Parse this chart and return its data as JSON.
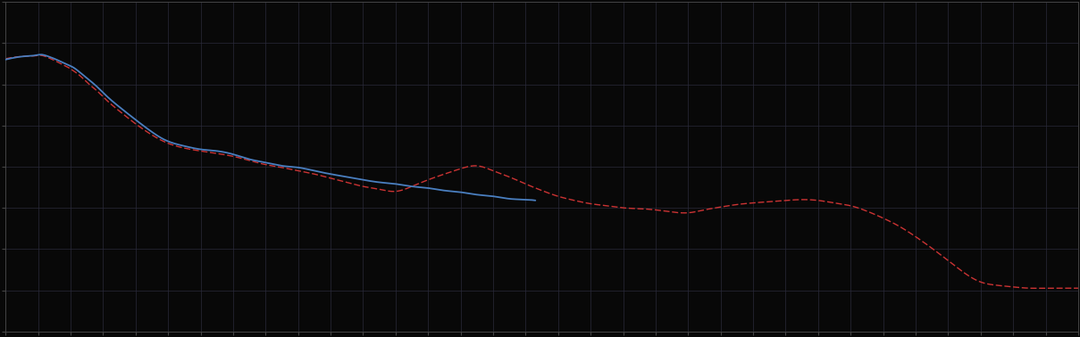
{
  "background_color": "#080808",
  "plot_bg_color": "#080808",
  "grid_color": "#2a2a3a",
  "blue_line_color": "#4a7fc0",
  "red_line_color": "#cc3333",
  "blue_linewidth": 1.3,
  "red_linewidth": 1.0,
  "figsize": [
    12.09,
    3.78
  ],
  "dpi": 100,
  "xlim": [
    0,
    33
  ],
  "ylim": [
    0,
    8
  ],
  "x_grid_major": 1,
  "y_grid_major": 1,
  "blue_x": [
    0,
    0.3,
    0.6,
    0.9,
    1.1,
    1.3,
    1.5,
    1.7,
    1.9,
    2.1,
    2.3,
    2.5,
    2.8,
    3.1,
    3.5,
    3.9,
    4.4,
    4.9,
    5.5,
    6.0,
    6.5,
    7.0,
    7.5,
    8.0,
    8.5,
    9.0,
    9.5,
    10.0,
    10.5,
    11.0,
    11.5,
    12.0,
    12.5,
    13.0,
    13.5,
    14.0,
    14.5,
    15.0,
    15.5,
    16.0,
    16.3
  ],
  "blue_y": [
    6.6,
    6.65,
    6.68,
    6.7,
    6.72,
    6.68,
    6.62,
    6.55,
    6.48,
    6.4,
    6.28,
    6.15,
    5.95,
    5.72,
    5.45,
    5.2,
    4.9,
    4.65,
    4.5,
    4.42,
    4.38,
    4.3,
    4.18,
    4.1,
    4.02,
    3.98,
    3.9,
    3.82,
    3.75,
    3.68,
    3.62,
    3.58,
    3.52,
    3.48,
    3.42,
    3.38,
    3.32,
    3.28,
    3.22,
    3.2,
    3.18
  ],
  "red_x": [
    0,
    0.3,
    0.6,
    0.9,
    1.1,
    1.3,
    1.5,
    1.7,
    1.9,
    2.1,
    2.3,
    2.5,
    2.8,
    3.1,
    3.5,
    3.9,
    4.4,
    4.9,
    5.5,
    6.0,
    6.5,
    7.0,
    7.5,
    8.0,
    8.5,
    9.0,
    9.5,
    10.0,
    10.5,
    11.0,
    11.5,
    12.0,
    12.5,
    13.0,
    13.5,
    14.0,
    14.5,
    15.0,
    15.5,
    16.0,
    16.5,
    17.0,
    17.5,
    18.0,
    18.5,
    19.0,
    19.5,
    20.0,
    20.5,
    21.0,
    21.5,
    22.0,
    22.5,
    23.0,
    23.5,
    24.0,
    24.5,
    25.0,
    25.5,
    26.0,
    26.5,
    27.0,
    27.5,
    28.0,
    28.5,
    29.0,
    29.5,
    30.0,
    30.5,
    31.0,
    31.5,
    32.0,
    32.5,
    33.0
  ],
  "red_y": [
    6.62,
    6.66,
    6.68,
    6.69,
    6.7,
    6.65,
    6.58,
    6.5,
    6.42,
    6.32,
    6.2,
    6.05,
    5.85,
    5.62,
    5.35,
    5.1,
    4.82,
    4.6,
    4.45,
    4.38,
    4.32,
    4.25,
    4.15,
    4.05,
    3.98,
    3.9,
    3.82,
    3.72,
    3.62,
    3.52,
    3.45,
    3.4,
    3.52,
    3.68,
    3.82,
    3.95,
    4.02,
    3.9,
    3.75,
    3.58,
    3.42,
    3.28,
    3.18,
    3.1,
    3.05,
    3.0,
    2.98,
    2.95,
    2.9,
    2.88,
    2.95,
    3.02,
    3.08,
    3.12,
    3.15,
    3.18,
    3.2,
    3.18,
    3.12,
    3.05,
    2.92,
    2.75,
    2.55,
    2.3,
    2.02,
    1.72,
    1.42,
    1.2,
    1.12,
    1.08,
    1.05,
    1.05,
    1.05,
    1.05
  ]
}
